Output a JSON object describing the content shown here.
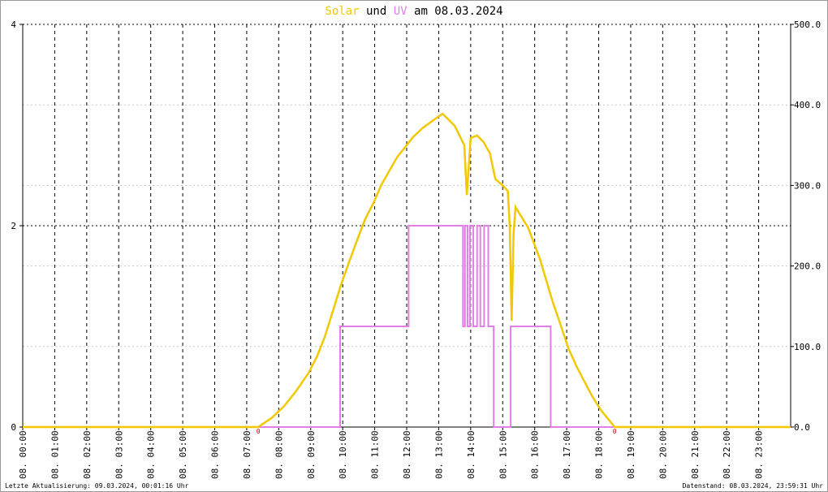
{
  "chart_data": {
    "type": "line",
    "title_mid": "und",
    "title_end": "am 08.03.2024",
    "xlim": [
      0,
      24
    ],
    "xticks": [
      {
        "value": 0,
        "label": "08. 00:00"
      },
      {
        "value": 1,
        "label": "08. 01:00"
      },
      {
        "value": 2,
        "label": "08. 02:00"
      },
      {
        "value": 3,
        "label": "08. 03:00"
      },
      {
        "value": 4,
        "label": "08. 04:00"
      },
      {
        "value": 5,
        "label": "08. 05:00"
      },
      {
        "value": 6,
        "label": "08. 06:00"
      },
      {
        "value": 7,
        "label": "08. 07:00"
      },
      {
        "value": 8,
        "label": "08. 08:00"
      },
      {
        "value": 9,
        "label": "08. 09:00"
      },
      {
        "value": 10,
        "label": "08. 10:00"
      },
      {
        "value": 11,
        "label": "08. 11:00"
      },
      {
        "value": 12,
        "label": "08. 12:00"
      },
      {
        "value": 13,
        "label": "08. 13:00"
      },
      {
        "value": 14,
        "label": "08. 14:00"
      },
      {
        "value": 15,
        "label": "08. 15:00"
      },
      {
        "value": 16,
        "label": "08. 16:00"
      },
      {
        "value": 17,
        "label": "08. 17:00"
      },
      {
        "value": 18,
        "label": "08. 18:00"
      },
      {
        "value": 19,
        "label": "08. 19:00"
      },
      {
        "value": 20,
        "label": "08. 20:00"
      },
      {
        "value": 21,
        "label": "08. 21:00"
      },
      {
        "value": 22,
        "label": "08. 22:00"
      },
      {
        "value": 23,
        "label": "08. 23:00"
      }
    ],
    "ylim": [
      0,
      4
    ],
    "yticks": [
      0,
      2,
      4
    ],
    "y2lim": [
      0,
      500
    ],
    "y2ticks": [
      {
        "value": 0,
        "label": "0.0"
      },
      {
        "value": 100,
        "label": "100.0"
      },
      {
        "value": 200,
        "label": "200.0"
      },
      {
        "value": 300,
        "label": "300.0"
      },
      {
        "value": 400,
        "label": "400.0"
      },
      {
        "value": 500,
        "label": "500.0"
      }
    ],
    "grid": true,
    "series": [
      {
        "name": "Solar",
        "color": "#f2c800",
        "axis": "y2",
        "x": [
          0,
          7.36,
          7.8,
          8.17,
          8.55,
          8.93,
          9.2,
          9.44,
          9.7,
          9.95,
          10.2,
          10.46,
          10.7,
          10.96,
          11.2,
          11.47,
          11.7,
          11.98,
          12.2,
          12.49,
          12.8,
          13.12,
          13.3,
          13.5,
          13.8,
          13.88,
          14.0,
          14.2,
          14.4,
          14.6,
          14.77,
          15.0,
          15.16,
          15.22,
          15.28,
          15.34,
          15.4,
          15.79,
          16.17,
          16.55,
          16.8,
          17.06,
          17.3,
          17.56,
          17.8,
          18.07,
          18.5,
          24
        ],
        "values": [
          0,
          0,
          12,
          26,
          45,
          67,
          88,
          112,
          145,
          177,
          205,
          233,
          258,
          278,
          300,
          319,
          335,
          349,
          360,
          371,
          380,
          389,
          382,
          374,
          350,
          288,
          359,
          362,
          354,
          340,
          308,
          300,
          293,
          250,
          132,
          240,
          273,
          248,
          208,
          157,
          128,
          97,
          76,
          56,
          38,
          21,
          0,
          0
        ]
      },
      {
        "name": "UV",
        "color": "#e27ee8",
        "axis": "y",
        "x": [
          0,
          9.92,
          9.92,
          12.06,
          12.06,
          13.76,
          13.76,
          13.82,
          13.82,
          13.9,
          13.9,
          13.98,
          13.98,
          14.08,
          14.08,
          14.2,
          14.2,
          14.3,
          14.3,
          14.42,
          14.42,
          14.55,
          14.55,
          14.72,
          14.72,
          15.25,
          15.25,
          16.5,
          16.5,
          24
        ],
        "values": [
          0,
          0,
          1,
          1,
          2,
          2,
          1,
          1,
          2,
          2,
          1,
          1,
          2,
          2,
          1,
          1,
          2,
          2,
          1,
          1,
          2,
          2,
          1,
          1,
          0,
          0,
          1,
          1,
          0,
          0
        ]
      }
    ],
    "annotations": [
      {
        "x": 7.36,
        "text": "0"
      },
      {
        "x": 18.5,
        "text": "0"
      }
    ],
    "footer_left": "Letzte Aktualisierung: 09.03.2024, 00:01:16 Uhr",
    "footer_right": "Datenstand: 08.03.2024, 23:59:31 Uhr"
  }
}
